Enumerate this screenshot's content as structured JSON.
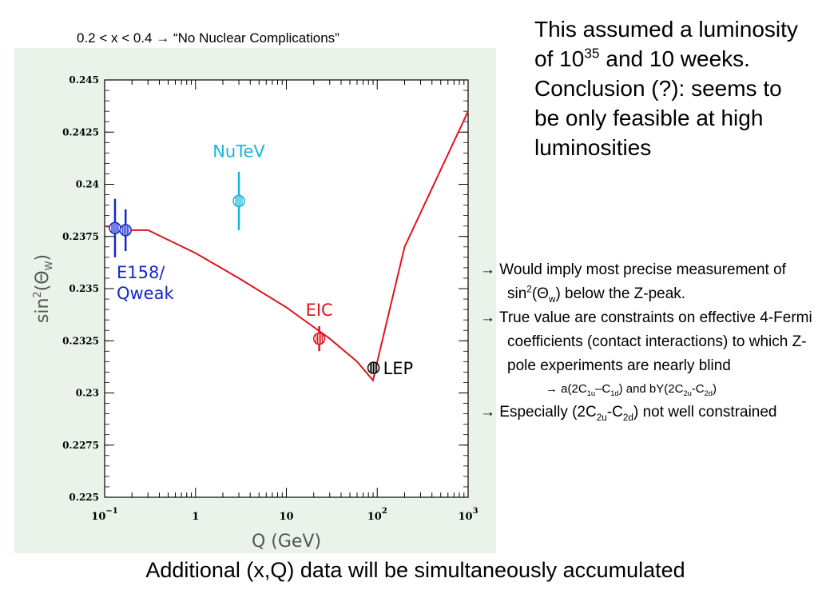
{
  "slide": {
    "title_prefix": "0.2 < x < 0.4",
    "title_suffix": "“No Nuclear Complications”",
    "footer": "Additional (x,Q) data will be simultaneously accumulated"
  },
  "right_note": {
    "line1_pre": "This assumed a luminosity of 10",
    "line1_sup": "35",
    "line2": "and 10 weeks. Conclusion (?): seems to be only feasible at high luminosities"
  },
  "bullets": {
    "b1_a": "Would imply most precise measurement of sin",
    "b1_sup": "2",
    "b1_b": "(Θ",
    "b1_sub": "w",
    "b1_c": ") below the Z-peak.",
    "b2": "True value are constraints on effective 4-Fermi coefficients (contact interactions) to which Z-pole experiments are nearly blind",
    "sub_a": "a(2C",
    "sub_a_sub1": "1u",
    "sub_b": "–C",
    "sub_b_sub": "1d",
    "sub_c": ") and bY(2C",
    "sub_c_sub": "2u",
    "sub_d": "-C",
    "sub_d_sub": "2d",
    "sub_e": ")",
    "b3_a": "Especially (2C",
    "b3_sub1": "2u",
    "b3_b": "-C",
    "b3_sub2": "2d",
    "b3_c": ") not well constrained"
  },
  "arrow_glyph": "→",
  "chart_data": {
    "type": "line",
    "xlabel": "Q (GeV)",
    "ylabel_base": "sin",
    "ylabel_sup": "2",
    "ylabel_paren": "(Θ",
    "ylabel_sub": "W",
    "ylabel_close": ")",
    "x_scale": "log",
    "xlim": [
      0.1,
      1000
    ],
    "ylim": [
      0.225,
      0.245
    ],
    "x_ticks": [
      {
        "value": 0.1,
        "base": "10",
        "exp": "−1"
      },
      {
        "value": 1,
        "base": "1",
        "exp": ""
      },
      {
        "value": 10,
        "base": "10",
        "exp": ""
      },
      {
        "value": 100,
        "base": "10",
        "exp": "2"
      },
      {
        "value": 1000,
        "base": "10",
        "exp": "3"
      }
    ],
    "y_ticks": [
      {
        "value": 0.245,
        "label": "0.245"
      },
      {
        "value": 0.2425,
        "label": "0.2425"
      },
      {
        "value": 0.24,
        "label": "0.24"
      },
      {
        "value": 0.2375,
        "label": "0.2375"
      },
      {
        "value": 0.235,
        "label": "0.235"
      },
      {
        "value": 0.2325,
        "label": "0.2325"
      },
      {
        "value": 0.23,
        "label": "0.23"
      },
      {
        "value": 0.2275,
        "label": "0.2275"
      },
      {
        "value": 0.225,
        "label": "0.225"
      }
    ],
    "curve": {
      "color": "#e0141e",
      "points": [
        [
          0.1,
          0.238
        ],
        [
          0.2,
          0.2378
        ],
        [
          0.3,
          0.2378
        ],
        [
          1,
          0.2367
        ],
        [
          3,
          0.2355
        ],
        [
          10,
          0.2341
        ],
        [
          30,
          0.2326
        ],
        [
          60,
          0.2315
        ],
        [
          90,
          0.2306
        ],
        [
          100,
          0.2315
        ],
        [
          200,
          0.237
        ],
        [
          1000,
          0.2435
        ]
      ]
    },
    "points": [
      {
        "name": "E158",
        "x": 0.13,
        "y": 0.2379,
        "err": 0.0014,
        "color": "#1428c8"
      },
      {
        "name": "Qweak",
        "x": 0.17,
        "y": 0.2378,
        "err": 0.001,
        "color": "#1428c8"
      },
      {
        "name": "NuTeV",
        "x": 3.0,
        "y": 0.2392,
        "err": 0.0014,
        "color": "#19b4dc"
      },
      {
        "name": "EIC",
        "x": 23,
        "y": 0.2326,
        "err": 0.0006,
        "color": "#e0141e"
      },
      {
        "name": "LEP",
        "x": 91,
        "y": 0.2312,
        "err": 0.0002,
        "color": "#000000"
      }
    ],
    "labels": {
      "e158_line1": "E158/",
      "e158_line2": "Qweak",
      "nutev": "NuTeV",
      "eic": "EIC",
      "lep": "LEP"
    },
    "colors": {
      "e158": "#1428c8",
      "nutev": "#19b4dc",
      "eic": "#e0141e",
      "lep": "#000000",
      "background": "#eaf3ea"
    }
  }
}
